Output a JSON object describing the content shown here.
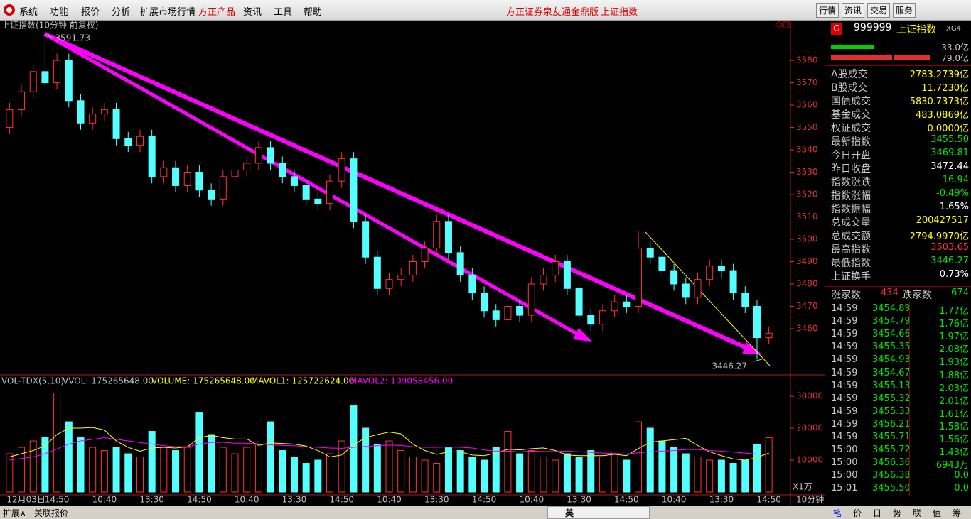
{
  "menu": {
    "items": [
      "系统",
      "功能",
      "报价",
      "分析",
      "扩展市场行情",
      "方正产品",
      "资讯",
      "工具",
      "帮助"
    ],
    "title": "方正证券泉友通金鼎版",
    "subtitle": "上证指数",
    "buttons": [
      "行情",
      "资讯",
      "交易",
      "服务"
    ]
  },
  "chart_data": [
    {
      "type": "candlestick",
      "title": "上证指数(10分钟 前复权)",
      "up_color": "#ff3232",
      "down_color": "#54ffff",
      "axis_color": "#e03030",
      "grid": false,
      "ylim": [
        3440.3,
        3597.5
      ],
      "yticks": [
        3460,
        3470,
        3480,
        3490,
        3500,
        3510,
        3520,
        3530,
        3540,
        3550,
        3560,
        3570,
        3580
      ],
      "open": [
        3550,
        3558,
        3566,
        3575,
        3570,
        3580,
        3562,
        3552,
        3556,
        3558,
        3545,
        3542,
        3546,
        3528,
        3532,
        3524,
        3530,
        3522,
        3518,
        3528,
        3531,
        3534,
        3541,
        3534,
        3528,
        3524,
        3518,
        3516,
        3526,
        3536,
        3508,
        3492,
        3478,
        3482,
        3484,
        3490,
        3496,
        3508,
        3494,
        3484,
        3476,
        3468,
        3464,
        3470,
        3466,
        3480,
        3484,
        3490,
        3478,
        3466,
        3462,
        3468,
        3472,
        3470,
        3496,
        3492,
        3486,
        3480,
        3474,
        3482,
        3488,
        3486,
        3476,
        3470,
        3456
      ],
      "high": [
        3561,
        3569,
        3578,
        3591.73,
        3583,
        3583,
        3565,
        3559,
        3561,
        3561,
        3548,
        3549,
        3549,
        3535,
        3535,
        3533,
        3533,
        3525,
        3531,
        3534,
        3537,
        3544,
        3544,
        3537,
        3531,
        3527,
        3521,
        3529,
        3539,
        3539,
        3511,
        3495,
        3485,
        3487,
        3493,
        3499,
        3511,
        3511,
        3497,
        3487,
        3479,
        3471,
        3473,
        3473,
        3483,
        3487,
        3493,
        3493,
        3481,
        3469,
        3471,
        3475,
        3475,
        3503.65,
        3499,
        3495,
        3489,
        3483,
        3485,
        3491,
        3491,
        3489,
        3479,
        3473,
        3461
      ],
      "low": [
        3547,
        3555,
        3563,
        3567,
        3567,
        3559,
        3549,
        3549,
        3553,
        3542,
        3539,
        3539,
        3525,
        3525,
        3521,
        3521,
        3519,
        3515,
        3515,
        3525,
        3528,
        3531,
        3531,
        3525,
        3521,
        3515,
        3513,
        3513,
        3523,
        3505,
        3489,
        3475,
        3475,
        3479,
        3481,
        3487,
        3493,
        3491,
        3481,
        3473,
        3465,
        3461,
        3461,
        3463,
        3463,
        3477,
        3481,
        3475,
        3463,
        3459,
        3459,
        3465,
        3467,
        3467,
        3489,
        3483,
        3477,
        3471,
        3471,
        3479,
        3483,
        3473,
        3467,
        3446.27,
        3453
      ],
      "close": [
        3558,
        3566,
        3575,
        3570,
        3580,
        3562,
        3552,
        3556,
        3558,
        3545,
        3542,
        3546,
        3528,
        3532,
        3524,
        3530,
        3522,
        3518,
        3528,
        3531,
        3534,
        3541,
        3534,
        3528,
        3524,
        3518,
        3516,
        3526,
        3536,
        3508,
        3492,
        3478,
        3482,
        3484,
        3490,
        3496,
        3508,
        3494,
        3484,
        3476,
        3468,
        3464,
        3470,
        3466,
        3480,
        3484,
        3490,
        3478,
        3466,
        3462,
        3468,
        3472,
        3470,
        3496,
        3492,
        3486,
        3480,
        3474,
        3482,
        3488,
        3486,
        3476,
        3470,
        3456,
        3458
      ]
    },
    {
      "type": "bar",
      "title": "VOL-TDX(5,10)",
      "vvol_label": "VVOL: 175265648.00",
      "unit": "X1万",
      "period": "10分钟",
      "axis_color": "#e03030",
      "ylim": [
        0,
        35800
      ],
      "yticks": [
        10000,
        20000,
        30000
      ],
      "categories": [
        "12月03日",
        null,
        null,
        null,
        "14:50",
        null,
        null,
        null,
        "10:40",
        null,
        null,
        null,
        "13:30",
        null,
        null,
        null,
        "14:50",
        null,
        null,
        null,
        "10:40",
        null,
        null,
        null,
        "13:30",
        null,
        null,
        null,
        "14:50",
        null,
        null,
        null,
        "10:40",
        null,
        null,
        null,
        "13:30",
        null,
        null,
        null,
        "14:50",
        null,
        null,
        null,
        "10:40",
        null,
        null,
        null,
        "13:30",
        null,
        null,
        null,
        "14:50",
        null,
        null,
        null,
        "10:40",
        null,
        null,
        null,
        "13:30",
        null,
        null,
        null,
        "14:50"
      ],
      "series": [
        {
          "name": "VOLUME: 175265648.00",
          "color": "#ffff00",
          "values": [
            12000,
            14000,
            16000,
            17000,
            31000,
            22000,
            17000,
            14000,
            13000,
            14000,
            12000,
            11000,
            19000,
            14000,
            13000,
            14000,
            25000,
            18000,
            14000,
            12000,
            14000,
            15000,
            22000,
            13000,
            11000,
            9000,
            10000,
            12000,
            16000,
            27000,
            20000,
            15000,
            16000,
            13000,
            11000,
            10000,
            9000,
            14000,
            13000,
            11000,
            10000,
            14000,
            19000,
            12000,
            13000,
            11000,
            10000,
            12000,
            11000,
            13000,
            11000,
            12000,
            10000,
            22000,
            20000,
            16000,
            14000,
            12000,
            11000,
            10000,
            10000,
            9000,
            10000,
            15000,
            17000
          ]
        },
        {
          "name": "MAVOL1: 125722624.00",
          "color": "#ffff00",
          "values": [
            11000,
            12000,
            13000,
            14500,
            18000,
            20000,
            20000,
            20200,
            19400,
            16000,
            14000,
            12800,
            13800,
            14000,
            13800,
            14200,
            17000,
            17800,
            17000,
            16600,
            16600,
            14600,
            15400,
            15200,
            15000,
            14400,
            13000,
            11000,
            11600,
            14800,
            17000,
            18000,
            18800,
            18200,
            15000,
            13000,
            11800,
            12600,
            12600,
            11600,
            11400,
            12200,
            13400,
            13200,
            13600,
            13800,
            13000,
            11600,
            11400,
            11400,
            11400,
            11800,
            11400,
            13600,
            15600,
            16000,
            16400,
            16800,
            14600,
            12600,
            11400,
            10400,
            10000,
            10800,
            12200
          ]
        },
        {
          "name": "MAVOL2: 109058456.00",
          "color": "#ff00ff",
          "values": [
            10000,
            10500,
            11000,
            12000,
            13500,
            15000,
            16000,
            16500,
            17000,
            16500,
            16000,
            15500,
            15000,
            14500,
            14200,
            14200,
            15000,
            15500,
            15600,
            15300,
            15300,
            15100,
            14800,
            14600,
            14500,
            14200,
            14000,
            13800,
            13700,
            14000,
            14300,
            14500,
            14700,
            14600,
            14200,
            14000,
            14000,
            14100,
            14000,
            13800,
            13200,
            12800,
            12800,
            12600,
            12800,
            12700,
            12700,
            12800,
            12600,
            12400,
            12200,
            12100,
            11900,
            12300,
            12600,
            12800,
            13000,
            13300,
            13300,
            13000,
            12800,
            12500,
            12200,
            11900,
            11800
          ]
        }
      ]
    }
  ],
  "quote_panel": {
    "badge": "G",
    "code": "999999",
    "name": "上证指数",
    "tag": "XG4",
    "bar_labels": [
      "33.0亿",
      "79.0亿"
    ],
    "rows": [
      {
        "label": "A股成交",
        "value": "2783.2739亿",
        "color": "#ffff00"
      },
      {
        "label": "B股成交",
        "value": "11.7230亿",
        "color": "#ffff00"
      },
      {
        "label": "国债成交",
        "value": "5830.7373亿",
        "color": "#ffff00"
      },
      {
        "label": "基金成交",
        "value": "483.0869亿",
        "color": "#ffff00"
      },
      {
        "label": "权证成交",
        "value": "0.0000亿",
        "color": "#ffff00"
      },
      {
        "label": "最新指数",
        "value": "3455.50",
        "color": "#00e600"
      },
      {
        "label": "今日开盘",
        "value": "3469.81",
        "color": "#00e600"
      },
      {
        "label": "昨日收盘",
        "value": "3472.44",
        "color": "#ffffff"
      },
      {
        "label": "指数涨跌",
        "value": "-16.94",
        "color": "#00e600"
      },
      {
        "label": "指数涨幅",
        "value": "-0.49%",
        "color": "#00e600"
      },
      {
        "label": "指数振幅",
        "value": "1.65%",
        "color": "#ffffff"
      },
      {
        "label": "总成交量",
        "value": "200427517",
        "color": "#ffff00"
      },
      {
        "label": "总成交额",
        "value": "2794.9970亿",
        "color": "#ffff00"
      },
      {
        "label": "最高指数",
        "value": "3503.65",
        "color": "#ff3232"
      },
      {
        "label": "最低指数",
        "value": "3446.27",
        "color": "#00e600"
      },
      {
        "label": "上证换手",
        "value": "0.73%",
        "color": "#ffffff"
      }
    ],
    "rise_label": "涨家数",
    "rise": "434",
    "fall_label": "跌家数",
    "fall": "674",
    "ticks": [
      [
        "14:59",
        "3454.89",
        "1.77亿"
      ],
      [
        "14:59",
        "3454.79",
        "1.76亿"
      ],
      [
        "14:59",
        "3454.66",
        "1.97亿"
      ],
      [
        "14:59",
        "3455.35",
        "2.08亿"
      ],
      [
        "14:59",
        "3454.93",
        "1.93亿"
      ],
      [
        "14:59",
        "3454.67",
        "1.88亿"
      ],
      [
        "14:59",
        "3455.13",
        "2.03亿"
      ],
      [
        "14:59",
        "3455.32",
        "2.01亿"
      ],
      [
        "14:59",
        "3455.33",
        "1.61亿"
      ],
      [
        "14:59",
        "3456.21",
        "1.58亿"
      ],
      [
        "14:59",
        "3455.71",
        "1.56亿"
      ],
      [
        "15:00",
        "3455.72",
        "1.43亿"
      ],
      [
        "15:00",
        "3456.36",
        "6943万"
      ],
      [
        "15:00",
        "3456.38",
        "0.0"
      ],
      [
        "15:01",
        "3455.50",
        "0.0"
      ]
    ]
  },
  "bottom_bar": {
    "left_tabs": [
      "扩展∧",
      "关联报价"
    ],
    "ime": "英",
    "right_tabs": [
      "笔",
      "价",
      "日",
      "势",
      "联",
      "值",
      "筹"
    ]
  }
}
